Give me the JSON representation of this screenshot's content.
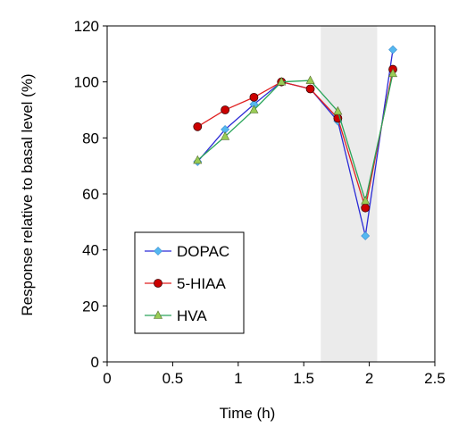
{
  "chart_data": {
    "type": "line",
    "xlabel": "Time (h)",
    "ylabel": "Response relative to basal level (%)",
    "xlim": [
      0,
      2.5
    ],
    "ylim": [
      0,
      120
    ],
    "xticks": [
      0,
      0.5,
      1,
      1.5,
      2,
      2.5
    ],
    "xtick_labels": [
      "0",
      "0.5",
      "1",
      "1.5",
      "2",
      "2.5"
    ],
    "yticks": [
      0,
      20,
      40,
      60,
      80,
      100,
      120
    ],
    "ytick_labels": [
      "0",
      "20",
      "40",
      "60",
      "80",
      "100",
      "120"
    ],
    "grid": false,
    "shaded_region": {
      "x": [
        1.63,
        2.06
      ],
      "color": "#ebebeb"
    },
    "legend_position": "bottom-left",
    "series": [
      {
        "name": "DOPAC",
        "color": "#2b2bd6",
        "marker": "diamond",
        "marker_color": "#55b8f0",
        "x": [
          0.69,
          0.9,
          1.12,
          1.33,
          1.55,
          1.76,
          1.97,
          2.18
        ],
        "y": [
          71.5,
          83,
          92,
          100,
          97.5,
          86,
          45,
          111.5
        ]
      },
      {
        "name": "5-HIAA",
        "color": "#e02020",
        "marker": "circle",
        "marker_color": "#cc0000",
        "x": [
          0.69,
          0.9,
          1.12,
          1.33,
          1.55,
          1.76,
          1.97,
          2.18
        ],
        "y": [
          84,
          90,
          94.5,
          100,
          97.5,
          87,
          55,
          104.5
        ]
      },
      {
        "name": "HVA",
        "color": "#2aa55a",
        "marker": "triangle",
        "marker_color": "#99cc55",
        "x": [
          0.69,
          0.9,
          1.12,
          1.33,
          1.55,
          1.76,
          1.97,
          2.18
        ],
        "y": [
          72,
          80.5,
          90,
          100,
          100.5,
          89.5,
          57.5,
          103
        ]
      }
    ]
  }
}
